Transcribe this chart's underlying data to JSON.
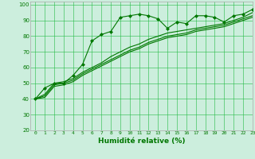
{
  "xlabel": "Humidité relative (%)",
  "xlim": [
    -0.5,
    23
  ],
  "ylim": [
    20,
    102
  ],
  "yticks": [
    20,
    30,
    40,
    50,
    60,
    70,
    80,
    90,
    100
  ],
  "xticks": [
    0,
    1,
    2,
    3,
    4,
    5,
    6,
    7,
    8,
    9,
    10,
    11,
    12,
    13,
    14,
    15,
    16,
    17,
    18,
    19,
    20,
    21,
    22,
    23
  ],
  "bg_color": "#cceedd",
  "grid_color": "#22bb44",
  "line_color": "#007700",
  "line1_x": [
    0,
    1,
    2,
    3,
    4,
    5,
    6,
    7,
    8,
    9,
    10,
    11,
    12,
    13,
    14,
    15,
    16,
    17,
    18,
    19,
    20,
    21,
    22,
    23
  ],
  "line1_y": [
    40,
    47,
    50,
    50,
    55,
    62,
    77,
    81,
    83,
    92,
    93,
    94,
    93,
    91,
    85,
    89,
    88,
    93,
    93,
    92,
    89,
    93,
    94,
    97
  ],
  "line2_x": [
    0,
    1,
    2,
    3,
    4,
    5,
    6,
    7,
    8,
    9,
    10,
    11,
    12,
    13,
    14,
    15,
    16,
    17,
    18,
    19,
    20,
    21,
    22,
    23
  ],
  "line2_y": [
    40,
    43,
    50,
    51,
    53,
    57,
    60,
    63,
    67,
    70,
    73,
    75,
    78,
    80,
    82,
    83,
    84,
    85,
    86,
    87,
    88,
    90,
    92,
    95
  ],
  "line3_x": [
    0,
    1,
    2,
    3,
    4,
    5,
    6,
    7,
    8,
    9,
    10,
    11,
    12,
    13,
    14,
    15,
    16,
    17,
    18,
    19,
    20,
    21,
    22,
    23
  ],
  "line3_y": [
    40,
    42,
    49,
    50,
    52,
    56,
    59,
    62,
    65,
    68,
    71,
    73,
    76,
    78,
    80,
    81,
    82,
    84,
    85,
    86,
    87,
    89,
    91,
    93
  ],
  "line4_x": [
    0,
    1,
    2,
    3,
    4,
    5,
    6,
    7,
    8,
    9,
    10,
    11,
    12,
    13,
    14,
    15,
    16,
    17,
    18,
    19,
    20,
    21,
    22,
    23
  ],
  "line4_y": [
    40,
    41,
    48,
    49,
    51,
    55,
    58,
    61,
    64,
    67,
    70,
    72,
    75,
    77,
    79,
    80,
    81,
    83,
    84,
    85,
    86,
    88,
    90,
    92
  ]
}
